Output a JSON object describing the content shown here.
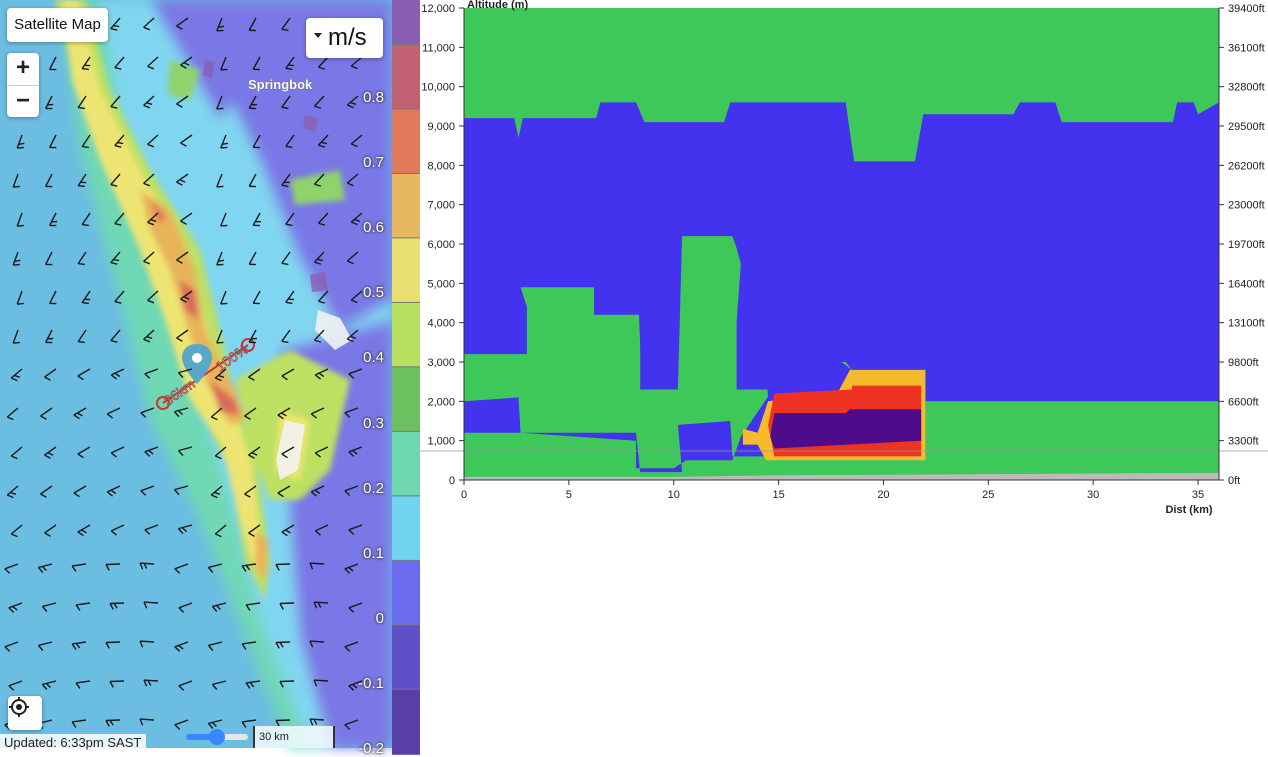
{
  "map": {
    "basemap_button": "Satellite Map",
    "units_select": "m/s",
    "zoom_in": "+",
    "zoom_out": "−",
    "place_label": "Springbok",
    "route_label_start": "36km",
    "route_label_end": "100%",
    "updated_text": "Updated: 6:33pm SAST",
    "scale_text": "30 km",
    "opacity_slider_value": 0.5,
    "locate_icon": "locate-icon"
  },
  "legend": {
    "labels": [
      "0.8",
      "0.7",
      "0.6",
      "0.5",
      "0.4",
      "0.3",
      "0.2",
      "0.1",
      "0",
      "-0.1",
      "-0.2"
    ],
    "colors": [
      "#8a5fb2",
      "#c06070",
      "#e07a5a",
      "#e8b860",
      "#e8e070",
      "#b8e060",
      "#6cc060",
      "#70d8b0",
      "#70d4f0",
      "#6c6cf0",
      "#6050c8",
      "#5a3ea8"
    ]
  },
  "cross_section": {
    "y_axis_title": "Altitude (m)",
    "x_axis_title": "Dist (km)",
    "y_ticks_left": [
      "12,000",
      "11,000",
      "10,000",
      "9,000",
      "8,000",
      "7,000",
      "6,000",
      "5,000",
      "4,000",
      "3,000",
      "2,000",
      "1,000",
      "0"
    ],
    "y_ticks_right": [
      "39400ft",
      "36100ft",
      "32800ft",
      "29500ft",
      "26200ft",
      "23000ft",
      "19700ft",
      "16400ft",
      "13100ft",
      "9800ft",
      "6600ft",
      "3300ft",
      "0ft"
    ],
    "x_ticks": [
      "0",
      "5",
      "10",
      "15",
      "20",
      "25",
      "30",
      "35"
    ],
    "colors": {
      "green": "#3fc85a",
      "blue": "#4433ee",
      "orange": "#f4bc2c",
      "red": "#ee3322",
      "purple": "#4e0c8a",
      "ground": "#bbbbbb"
    }
  }
}
